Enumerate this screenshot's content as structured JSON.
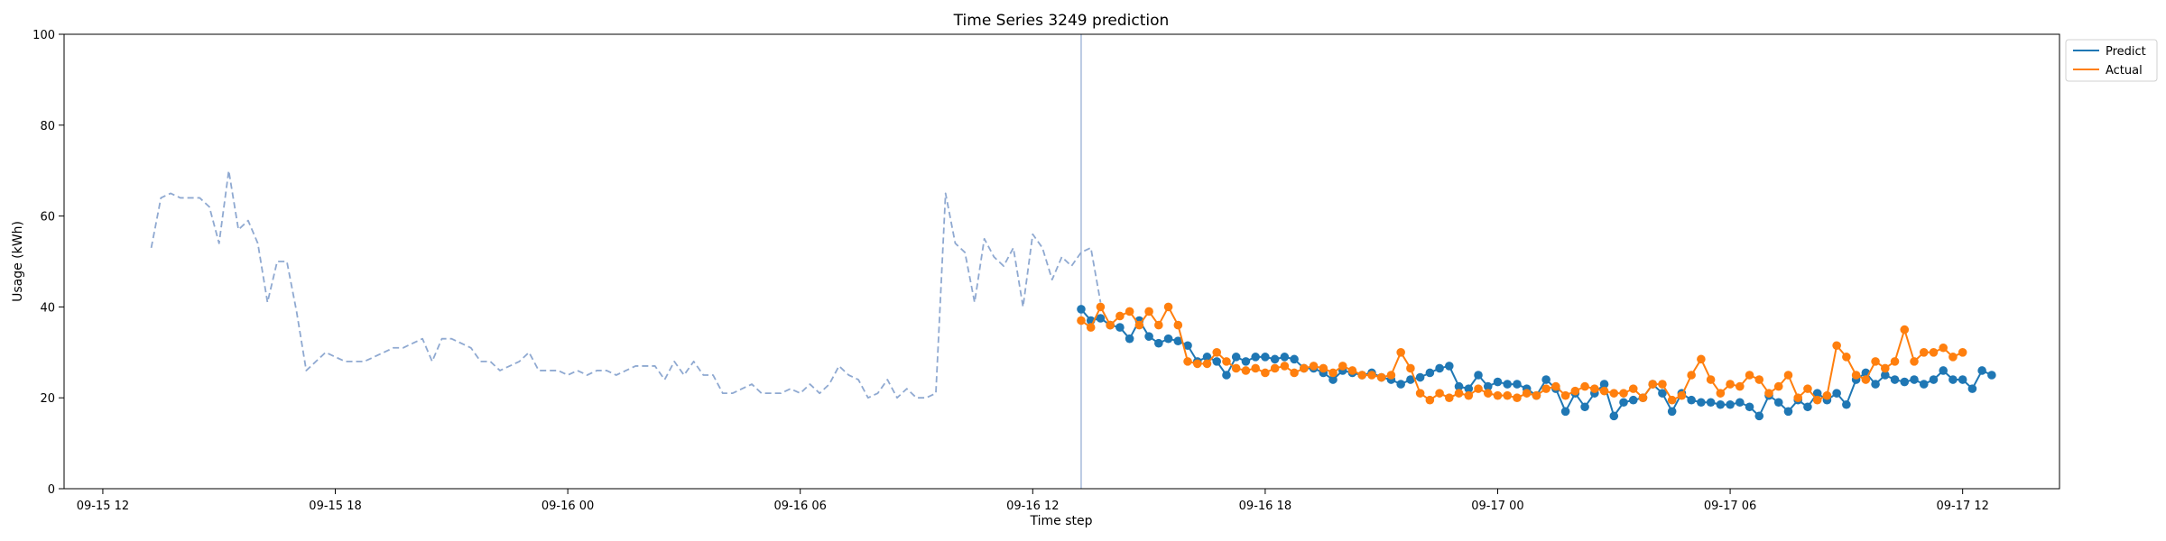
{
  "chart_data": {
    "type": "line",
    "title": "Time Series 3249 prediction",
    "xlabel": "Time step",
    "ylabel": "Usage (kWh)",
    "ylim": [
      0,
      100
    ],
    "yticks": [
      0,
      20,
      40,
      60,
      80,
      100
    ],
    "x_unit": "datetime",
    "xlim": [
      "2021-09-15T11:00",
      "2021-09-17T14:30"
    ],
    "xticks": [
      {
        "t": "2021-09-15T12:00",
        "label": "09-15 12"
      },
      {
        "t": "2021-09-15T18:00",
        "label": "09-15 18"
      },
      {
        "t": "2021-09-16T00:00",
        "label": "09-16 00"
      },
      {
        "t": "2021-09-16T06:00",
        "label": "09-16 06"
      },
      {
        "t": "2021-09-16T12:00",
        "label": "09-16 12"
      },
      {
        "t": "2021-09-16T18:00",
        "label": "09-16 18"
      },
      {
        "t": "2021-09-17T00:00",
        "label": "09-17 00"
      },
      {
        "t": "2021-09-17T06:00",
        "label": "09-17 06"
      },
      {
        "t": "2021-09-17T12:00",
        "label": "09-17 12"
      }
    ],
    "vline_x": "2021-09-16T13:15",
    "grid": false,
    "legend_position": "outside upper right",
    "series": [
      {
        "kind": "history",
        "style": "dashed",
        "color": "#8fa9d1",
        "x_start": "2021-09-15T13:15",
        "x_step_minutes": 15,
        "values": [
          53,
          64,
          65,
          64,
          64,
          64,
          62,
          54,
          70,
          57,
          59,
          54,
          41,
          50,
          50,
          39,
          26,
          28,
          30,
          29,
          28,
          28,
          28,
          29,
          30,
          31,
          31,
          32,
          33,
          28,
          33,
          33,
          32,
          31,
          28,
          28,
          26,
          27,
          28,
          30,
          26,
          26,
          26,
          25,
          26,
          25,
          26,
          26,
          25,
          26,
          27,
          27,
          27,
          24,
          28,
          25,
          28,
          25,
          25,
          21,
          21,
          22,
          23,
          21,
          21,
          21,
          22,
          21,
          23,
          21,
          23,
          27,
          25,
          24,
          20,
          21,
          24,
          20,
          22,
          20,
          20,
          21,
          65,
          54,
          52,
          41,
          55,
          51,
          49,
          53,
          40,
          56,
          53,
          46,
          51,
          49,
          52,
          53,
          41
        ]
      },
      {
        "name": "Predict",
        "color": "#1f77b4",
        "x_start": "2021-09-16T13:15",
        "x_step_minutes": 15,
        "values": [
          39.5,
          37,
          37.5,
          36,
          35.5,
          33,
          37,
          33.5,
          32,
          33,
          32.5,
          31.5,
          28,
          29,
          28,
          25,
          29,
          28,
          29,
          29,
          28.5,
          29,
          28.5,
          26.5,
          26.5,
          25.5,
          24,
          26,
          25.5,
          25,
          25.5,
          24.5,
          24,
          23,
          24,
          24.5,
          25.5,
          26.5,
          27,
          22.5,
          22,
          25,
          22.5,
          23.5,
          23,
          23,
          22,
          20.5,
          24,
          22,
          17,
          21,
          18,
          21,
          23,
          16,
          19,
          19.5,
          20,
          23,
          21,
          17,
          21,
          19.5,
          19,
          19,
          18.5,
          18.5,
          19,
          18,
          16,
          20.5,
          19,
          17,
          19.5,
          18,
          21,
          19.5,
          21,
          18.5,
          24,
          25.5,
          23,
          25,
          24,
          23.5,
          24,
          23,
          24,
          26,
          24,
          24,
          22,
          26,
          25
        ]
      },
      {
        "name": "Actual",
        "color": "#ff7f0e",
        "x_start": "2021-09-16T13:15",
        "x_step_minutes": 15,
        "values": [
          37,
          35.5,
          40,
          36,
          38,
          39,
          36,
          39,
          36,
          40,
          36,
          28,
          27.5,
          27.5,
          30,
          28,
          26.5,
          26,
          26.5,
          25.5,
          26.5,
          27,
          25.5,
          26.5,
          27,
          26.5,
          25.5,
          27,
          26,
          25,
          25,
          24.5,
          25,
          30,
          26.5,
          21,
          19.5,
          21,
          20,
          21,
          20.5,
          22,
          21,
          20.5,
          20.5,
          20,
          21,
          20.5,
          22,
          22.5,
          20.5,
          21.5,
          22.5,
          22,
          21.5,
          21,
          21,
          22,
          20,
          23,
          23,
          19.5,
          20.5,
          25,
          28.5,
          24,
          21,
          23,
          22.5,
          25,
          24,
          21,
          22.5,
          25,
          20,
          22,
          19.5,
          20.5,
          31.5,
          29,
          25,
          24,
          28,
          26.5,
          28,
          35,
          28,
          30,
          30,
          31,
          29,
          30
        ]
      }
    ]
  }
}
